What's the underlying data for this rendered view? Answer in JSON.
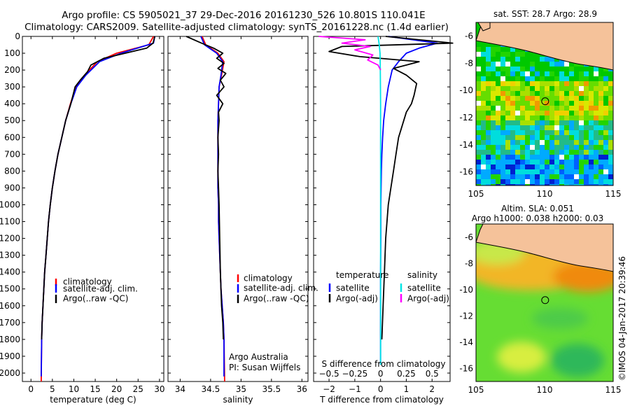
{
  "header": {
    "line1": "Argo profile: CS 5905021_37 29-Dec-2016 20161230_526 10.801S 110.041E",
    "line2": "Climatology: CARS2009. Satellite-adjusted climatology: synTS_20161228.nc (1.4d earlier)"
  },
  "credit": "©IMOS 04-Jan-2017 20:39:46",
  "colors": {
    "climatology": "#ff0000",
    "satellite": "#0000ff",
    "argo": "#000000",
    "salinity_satellite": "#00e5e5",
    "salinity_argo": "#ff00ff",
    "land": "#f5c29a"
  },
  "chart_data": [
    {
      "type": "line",
      "id": "temperature",
      "xlabel": "temperature (deg C)",
      "ylabel": "",
      "xlim": [
        -2,
        31
      ],
      "ylim": [
        2050,
        0
      ],
      "x_ticks": [
        0,
        5,
        10,
        15,
        20,
        25,
        30
      ],
      "x_tick_labels": [
        "0",
        "5",
        "10",
        "15",
        "20",
        "25",
        "30"
      ],
      "y_ticks": [
        0,
        100,
        200,
        300,
        400,
        500,
        600,
        700,
        800,
        900,
        1000,
        1100,
        1200,
        1300,
        1400,
        1500,
        1600,
        1700,
        1800,
        1900,
        2000
      ],
      "y_tick_labels": [
        "0",
        "100",
        "200",
        "300",
        "400",
        "500",
        "600",
        "700",
        "800",
        "900",
        "1000",
        "1100",
        "1200",
        "1300",
        "1400",
        "1500",
        "1600",
        "1700",
        "1800",
        "1900",
        "2000"
      ],
      "legend": [
        "climatology",
        "satellite-adj. clim.",
        "Argo(..raw -QC)"
      ],
      "legend_position": "center",
      "series": [
        {
          "name": "climatology",
          "color": "#ff0000",
          "x": [
            28.6,
            27.5,
            20,
            15.5,
            12.5,
            10.5,
            9.2,
            8.1,
            7.2,
            6.3,
            5.6,
            5.0,
            4.5,
            4.1,
            3.8,
            3.5,
            3.2,
            3.0,
            2.8,
            2.6,
            2.5,
            2.4
          ],
          "y": [
            0,
            50,
            100,
            150,
            230,
            300,
            400,
            500,
            600,
            700,
            800,
            900,
            1000,
            1100,
            1200,
            1300,
            1400,
            1500,
            1600,
            1700,
            1800,
            2050
          ]
        },
        {
          "name": "satellite-adj. clim.",
          "color": "#0000ff",
          "x": [
            28.9,
            28.6,
            21,
            16,
            12.8,
            10.7,
            9.3,
            8.1,
            7.2,
            6.3,
            5.6,
            5.0,
            4.5,
            4.1,
            3.8,
            3.5,
            3.2,
            3.0,
            2.8,
            2.6,
            2.5,
            2.4
          ],
          "y": [
            0,
            40,
            100,
            150,
            230,
            300,
            400,
            500,
            600,
            700,
            800,
            900,
            1000,
            1100,
            1200,
            1300,
            1400,
            1500,
            1600,
            1700,
            1800,
            2020
          ]
        },
        {
          "name": "Argo(..raw -QC)",
          "color": "#000000",
          "x": [
            28.9,
            28.5,
            27,
            22,
            17,
            14,
            13.2,
            11.5,
            10.3,
            9.3,
            8.1,
            7.2,
            6.3,
            5.6,
            5.0,
            4.5,
            4.1,
            3.8,
            3.5,
            3.2,
            3.0,
            2.8,
            2.6,
            2.5
          ],
          "y": [
            0,
            40,
            70,
            100,
            130,
            170,
            210,
            260,
            300,
            400,
            500,
            600,
            700,
            800,
            900,
            1000,
            1100,
            1200,
            1300,
            1400,
            1500,
            1600,
            1700,
            1800
          ]
        }
      ]
    },
    {
      "type": "line",
      "id": "salinity",
      "xlabel": "salinity",
      "xlim": [
        33.8,
        36.1
      ],
      "ylim": [
        2050,
        0
      ],
      "x_ticks": [
        34,
        34.5,
        35,
        35.5,
        36
      ],
      "x_tick_labels": [
        "34",
        "34.5",
        "35",
        "35.5",
        "36"
      ],
      "legend": [
        "climatology",
        "satellite-adj. clim.",
        "Argo(..raw -QC)"
      ],
      "legend_position": "center-right",
      "annotation": [
        "Argo Australia",
        "PI: Susan Wijffels"
      ],
      "series": [
        {
          "name": "climatology",
          "color": "#ff0000",
          "x": [
            34.36,
            34.42,
            34.62,
            34.72,
            34.68,
            34.64,
            34.63,
            34.62,
            34.62,
            34.62,
            34.62,
            34.62,
            34.63,
            34.63,
            34.64,
            34.65,
            34.66,
            34.67,
            34.69,
            34.71,
            34.72,
            34.73
          ],
          "y": [
            0,
            50,
            100,
            150,
            230,
            300,
            400,
            500,
            600,
            700,
            800,
            900,
            1000,
            1100,
            1200,
            1300,
            1400,
            1500,
            1600,
            1700,
            1800,
            2050
          ]
        },
        {
          "name": "satellite-adj. clim.",
          "color": "#0000ff",
          "x": [
            34.34,
            34.4,
            34.6,
            34.7,
            34.67,
            34.64,
            34.63,
            34.62,
            34.62,
            34.62,
            34.62,
            34.62,
            34.63,
            34.63,
            34.64,
            34.65,
            34.66,
            34.67,
            34.69,
            34.71,
            34.72,
            34.72
          ],
          "y": [
            0,
            50,
            100,
            150,
            230,
            300,
            400,
            500,
            600,
            700,
            800,
            900,
            1000,
            1100,
            1200,
            1300,
            1400,
            1500,
            1600,
            1700,
            1800,
            2020
          ]
        },
        {
          "name": "Argo(..raw -QC)",
          "color": "#000000",
          "x": [
            34.1,
            34.35,
            34.55,
            34.7,
            34.6,
            34.72,
            34.62,
            34.75,
            34.66,
            34.72,
            34.6,
            34.7,
            34.63,
            34.64,
            34.62,
            34.63,
            34.62,
            34.63,
            34.64,
            34.65,
            34.66,
            34.68,
            34.7,
            34.71
          ],
          "y": [
            0,
            40,
            70,
            100,
            130,
            160,
            190,
            220,
            260,
            300,
            350,
            400,
            450,
            500,
            600,
            700,
            800,
            900,
            1000,
            1200,
            1400,
            1600,
            1700,
            1800
          ]
        }
      ]
    },
    {
      "type": "line",
      "id": "difference",
      "xlabel": "T difference from climatology",
      "xlabel_top": "S difference from climatology",
      "xlim": [
        -2.6,
        2.7
      ],
      "ylim": [
        2050,
        0
      ],
      "x_ticks": [
        -2,
        -1,
        0,
        1,
        2
      ],
      "x_tick_labels": [
        "−2",
        "−1",
        "0",
        "1",
        "2"
      ],
      "x_ticks_top": [
        "−0.5",
        "−0.25",
        "0",
        "0.25",
        "0.5"
      ],
      "legend_temperature": {
        "title": "temperature",
        "items": [
          "satellite",
          "Argo(-adj)"
        ]
      },
      "legend_salinity": {
        "title": "salinity",
        "items": [
          "satellite",
          "Argo(-adj)"
        ]
      },
      "series": [
        {
          "name": "temperature satellite",
          "color": "#0000ff",
          "x": [
            0.3,
            2.2,
            1.5,
            1.0,
            0.7,
            0.45,
            0.3,
            0.2,
            0.12,
            0.08,
            0.05,
            0.03,
            0.02,
            0.01,
            0.01,
            0,
            0,
            0
          ],
          "y": [
            0,
            40,
            70,
            100,
            150,
            200,
            300,
            400,
            500,
            600,
            700,
            800,
            900,
            1000,
            1200,
            1400,
            1700,
            1950
          ]
        },
        {
          "name": "temperature Argo(-adj)",
          "color": "#000000",
          "x": [
            0.2,
            2.8,
            -1.5,
            -2.0,
            -0.8,
            1.5,
            0.5,
            1.0,
            1.4,
            1.3,
            1.2,
            1.0,
            0.9,
            0.8,
            0.7,
            0.6,
            0.5,
            0.4,
            0.3,
            0.2,
            0.15,
            0.1,
            0.05
          ],
          "y": [
            0,
            40,
            60,
            90,
            120,
            150,
            190,
            230,
            280,
            350,
            400,
            450,
            500,
            550,
            600,
            700,
            800,
            900,
            1000,
            1200,
            1400,
            1600,
            1800
          ]
        },
        {
          "name": "salinity satellite",
          "color": "#00e5e5",
          "x": [
            -0.1,
            -0.05,
            -0.02,
            -0.01,
            0,
            0,
            0,
            0
          ],
          "y": [
            0,
            50,
            100,
            200,
            400,
            800,
            1400,
            1950
          ]
        },
        {
          "name": "salinity Argo(-adj)",
          "color": "#ff00ff",
          "x": [
            -2.4,
            -0.6,
            -1.5,
            -0.4,
            -1.0,
            -0.3,
            -0.5,
            -0.1,
            0
          ],
          "y": [
            0,
            20,
            40,
            60,
            80,
            110,
            140,
            170,
            200
          ]
        }
      ]
    },
    {
      "type": "heatmap",
      "id": "sst_map",
      "title": "sat. SST: 28.7 Argo: 28.9",
      "xlim": [
        105,
        115
      ],
      "ylim": [
        -17,
        -5
      ],
      "x_ticks": [
        105,
        110,
        115
      ],
      "x_tick_labels": [
        "105",
        "110",
        "115"
      ],
      "y_ticks": [
        -6,
        -8,
        -10,
        -12,
        -14,
        -16
      ],
      "y_tick_labels": [
        "-6",
        "-8",
        "-10",
        "-12",
        "-14",
        "-16"
      ],
      "marker": {
        "lon": 110.041,
        "lat": -10.801
      }
    },
    {
      "type": "heatmap",
      "id": "sla_map",
      "title": "Altim. SLA: 0.051",
      "subtitle": "Argo h1000: 0.038 h2000: 0.03",
      "xlim": [
        105,
        115
      ],
      "ylim": [
        -17,
        -5
      ],
      "x_ticks": [
        105,
        110,
        115
      ],
      "x_tick_labels": [
        "105",
        "110",
        "115"
      ],
      "y_ticks": [
        -6,
        -8,
        -10,
        -12,
        -14,
        -16
      ],
      "y_tick_labels": [
        "-6",
        "-8",
        "-10",
        "-12",
        "-14",
        "-16"
      ],
      "marker": {
        "lon": 110.041,
        "lat": -10.801
      }
    }
  ]
}
